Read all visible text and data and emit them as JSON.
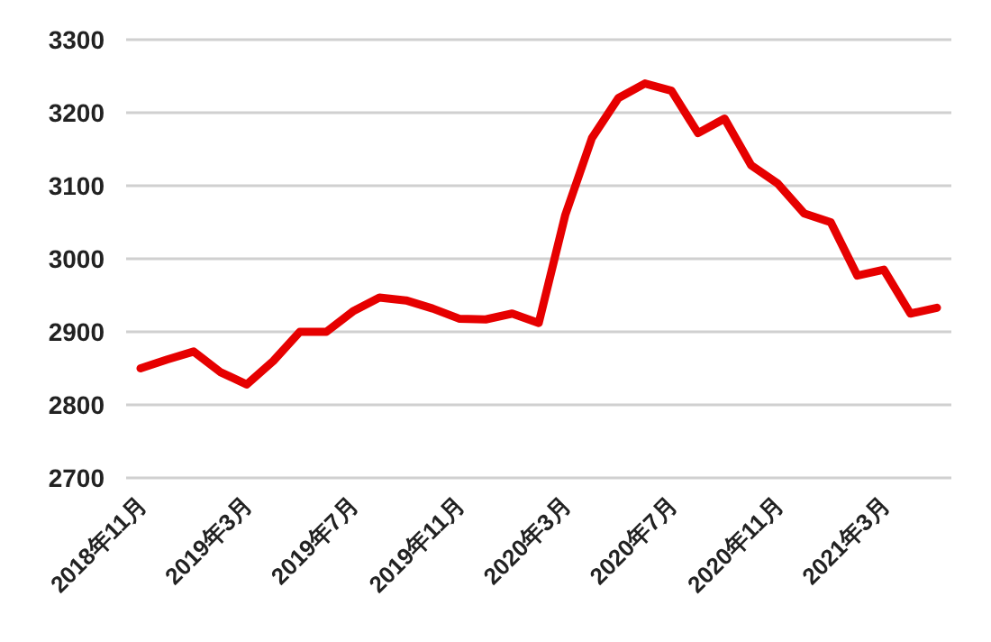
{
  "chart_data": {
    "type": "line",
    "categories": [
      "2018年11月",
      null,
      null,
      null,
      "2019年3月",
      null,
      null,
      null,
      "2019年7月",
      null,
      null,
      null,
      "2019年11月",
      null,
      null,
      null,
      "2020年3月",
      null,
      null,
      null,
      "2020年7月",
      null,
      null,
      null,
      "2020年11月",
      null,
      null,
      null,
      "2021年3月",
      null,
      null
    ],
    "series": [
      {
        "color": "#e60000",
        "values": [
          2850,
          2862,
          2873,
          2845,
          2828,
          2860,
          2900,
          2900,
          2928,
          2947,
          2943,
          2932,
          2918,
          2917,
          2925,
          2912,
          3060,
          3165,
          3220,
          3240,
          3230,
          3172,
          3192,
          3128,
          3103,
          3062,
          3050,
          2977,
          2985,
          2925,
          2933
        ]
      }
    ],
    "ylim": [
      2700,
      3300
    ],
    "yticks": [
      2700,
      2800,
      2900,
      3000,
      3100,
      3200,
      3300
    ],
    "grid": "y",
    "marker": "none",
    "line_style": "solid"
  }
}
